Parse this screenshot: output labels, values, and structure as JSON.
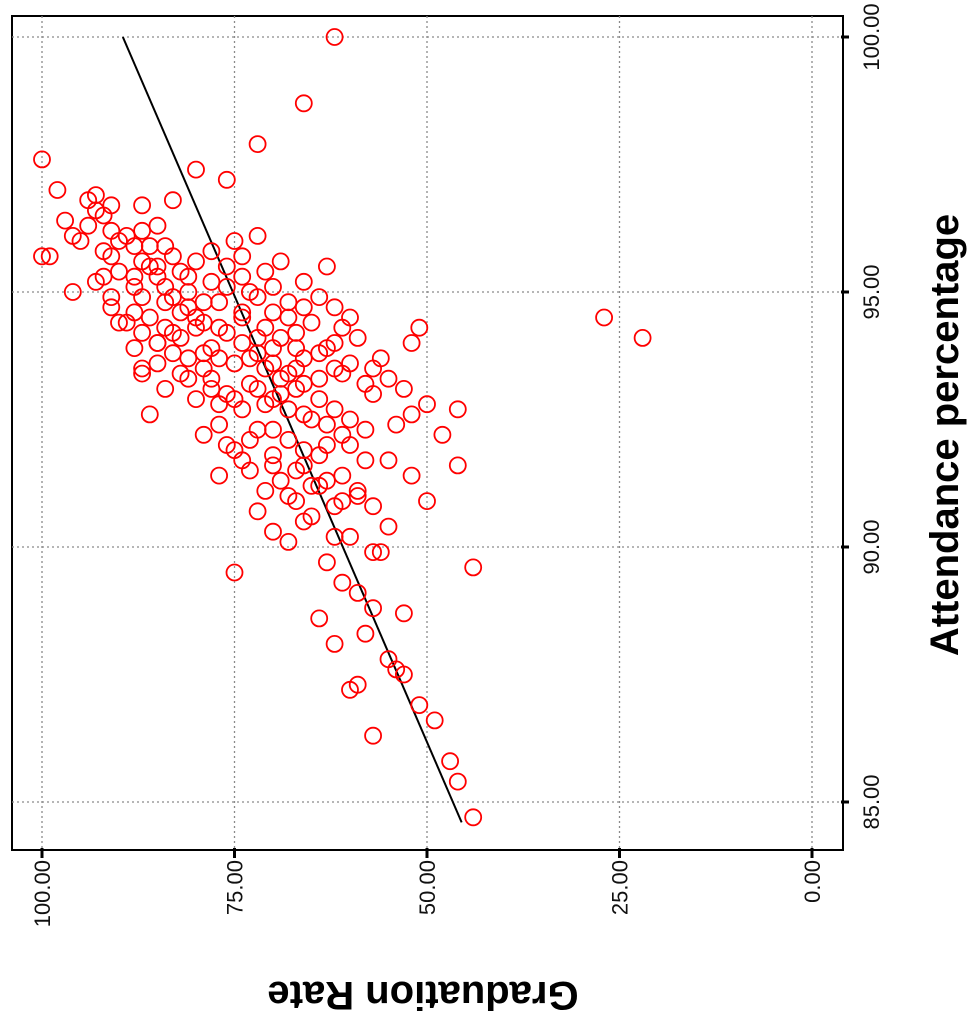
{
  "chart_data": {
    "type": "scatter",
    "title": "",
    "xlabel": "Attendance percentage",
    "ylabel": "Graduation Rate",
    "x_ticks": [
      "85.00",
      "90.00",
      "95.00",
      "100.00"
    ],
    "y_ticks": [
      "0.00",
      "25.00",
      "50.00",
      "75.00",
      "100.00"
    ],
    "xlim": [
      84.2,
      100.6
    ],
    "ylim": [
      -1.5,
      103
    ],
    "grid": true,
    "legend": "none",
    "orientation": "rotated-90-clockwise",
    "point_color": "#ff0000",
    "line_color": "#000000",
    "fit_line": {
      "x": [
        84.6,
        100.0
      ],
      "y": [
        45.5,
        89.5
      ]
    },
    "points": [
      [
        100.0,
        62
      ],
      [
        98.7,
        66
      ],
      [
        97.9,
        72
      ],
      [
        97.6,
        100
      ],
      [
        97.4,
        80
      ],
      [
        97.2,
        76
      ],
      [
        97.0,
        98
      ],
      [
        96.9,
        93
      ],
      [
        96.8,
        94
      ],
      [
        96.8,
        83
      ],
      [
        96.7,
        91
      ],
      [
        96.6,
        93
      ],
      [
        96.4,
        97
      ],
      [
        96.3,
        94
      ],
      [
        96.2,
        91
      ],
      [
        96.1,
        89
      ],
      [
        96.1,
        96
      ],
      [
        96.0,
        95
      ],
      [
        95.9,
        84
      ],
      [
        95.9,
        88
      ],
      [
        95.8,
        92
      ],
      [
        95.7,
        100
      ],
      [
        95.7,
        99
      ],
      [
        95.6,
        87
      ],
      [
        95.5,
        86
      ],
      [
        95.5,
        63
      ],
      [
        95.4,
        90
      ],
      [
        95.3,
        81
      ],
      [
        95.3,
        85
      ],
      [
        95.2,
        93
      ],
      [
        95.1,
        88
      ],
      [
        95.1,
        76
      ],
      [
        95.0,
        96
      ],
      [
        94.9,
        87
      ],
      [
        94.8,
        84
      ],
      [
        94.8,
        79
      ],
      [
        94.7,
        91
      ],
      [
        94.6,
        82
      ],
      [
        94.5,
        86
      ],
      [
        94.5,
        74
      ],
      [
        94.4,
        89
      ],
      [
        94.3,
        80
      ],
      [
        94.3,
        77
      ],
      [
        94.2,
        83
      ],
      [
        94.1,
        72
      ],
      [
        94.0,
        85
      ],
      [
        93.9,
        88
      ],
      [
        93.9,
        70
      ],
      [
        93.8,
        79
      ],
      [
        93.7,
        81
      ],
      [
        93.6,
        75
      ],
      [
        93.5,
        87
      ],
      [
        93.5,
        67
      ],
      [
        93.4,
        82
      ],
      [
        93.3,
        78
      ],
      [
        93.2,
        73
      ],
      [
        93.1,
        84
      ],
      [
        93.0,
        76
      ],
      [
        93.0,
        69
      ],
      [
        92.9,
        80
      ],
      [
        92.8,
        71
      ],
      [
        92.7,
        74
      ],
      [
        92.6,
        86
      ],
      [
        92.5,
        65
      ],
      [
        92.4,
        77
      ],
      [
        92.3,
        72
      ],
      [
        92.2,
        79
      ],
      [
        92.1,
        68
      ],
      [
        92.0,
        63
      ],
      [
        91.9,
        75
      ],
      [
        91.8,
        70
      ],
      [
        91.7,
        58
      ],
      [
        91.6,
        66
      ],
      [
        91.5,
        73
      ],
      [
        91.4,
        61
      ],
      [
        91.3,
        69
      ],
      [
        91.2,
        64
      ],
      [
        91.1,
        71
      ],
      [
        91.0,
        59
      ],
      [
        90.9,
        67
      ],
      [
        90.8,
        62
      ],
      [
        90.6,
        65
      ],
      [
        90.4,
        55
      ],
      [
        90.3,
        70
      ],
      [
        90.2,
        60
      ],
      [
        90.1,
        68
      ],
      [
        89.9,
        56
      ],
      [
        89.7,
        63
      ],
      [
        89.5,
        75
      ],
      [
        89.3,
        61
      ],
      [
        89.1,
        59
      ],
      [
        88.8,
        57
      ],
      [
        88.6,
        64
      ],
      [
        88.3,
        58
      ],
      [
        88.1,
        62
      ],
      [
        87.8,
        55
      ],
      [
        87.5,
        53
      ],
      [
        87.2,
        60
      ],
      [
        86.9,
        51
      ],
      [
        86.6,
        49
      ],
      [
        86.3,
        57
      ],
      [
        85.8,
        47
      ],
      [
        85.4,
        46
      ],
      [
        84.7,
        44
      ],
      [
        94.5,
        27
      ],
      [
        94.1,
        22
      ],
      [
        92.7,
        46
      ],
      [
        92.2,
        48
      ],
      [
        91.7,
        55
      ],
      [
        91.4,
        52
      ],
      [
        90.9,
        50
      ],
      [
        89.9,
        57
      ],
      [
        89.6,
        44
      ],
      [
        88.7,
        53
      ],
      [
        87.3,
        59
      ],
      [
        87.6,
        54
      ],
      [
        93.7,
        56
      ],
      [
        94.3,
        51
      ],
      [
        93.1,
        53
      ],
      [
        92.4,
        54
      ],
      [
        95.6,
        69
      ],
      [
        95.4,
        71
      ],
      [
        95.2,
        66
      ],
      [
        95.0,
        73
      ],
      [
        94.8,
        68
      ],
      [
        94.6,
        70
      ],
      [
        94.4,
        65
      ],
      [
        94.2,
        67
      ],
      [
        94.0,
        62
      ],
      [
        93.8,
        64
      ],
      [
        93.6,
        60
      ],
      [
        93.4,
        61
      ],
      [
        93.2,
        58
      ],
      [
        93.0,
        57
      ],
      [
        96.1,
        72
      ],
      [
        96.0,
        75
      ],
      [
        95.8,
        78
      ],
      [
        95.6,
        80
      ],
      [
        95.4,
        82
      ],
      [
        95.2,
        78
      ],
      [
        95.0,
        81
      ],
      [
        94.8,
        77
      ],
      [
        94.6,
        74
      ],
      [
        94.4,
        79
      ],
      [
        94.2,
        76
      ],
      [
        94.0,
        74
      ],
      [
        93.8,
        72
      ],
      [
        93.6,
        70
      ],
      [
        93.4,
        68
      ],
      [
        93.2,
        66
      ],
      [
        92.9,
        64
      ],
      [
        92.7,
        62
      ],
      [
        92.5,
        60
      ],
      [
        92.3,
        58
      ],
      [
        94.9,
        64
      ],
      [
        94.7,
        62
      ],
      [
        94.5,
        60
      ],
      [
        94.3,
        61
      ],
      [
        94.1,
        59
      ],
      [
        93.9,
        63
      ],
      [
        93.7,
        66
      ],
      [
        93.5,
        62
      ],
      [
        93.3,
        64
      ],
      [
        93.1,
        67
      ],
      [
        95.7,
        74
      ],
      [
        95.5,
        76
      ],
      [
        95.3,
        74
      ],
      [
        95.1,
        70
      ],
      [
        94.9,
        72
      ],
      [
        94.7,
        66
      ],
      [
        94.5,
        68
      ],
      [
        94.3,
        71
      ],
      [
        94.1,
        69
      ],
      [
        93.9,
        67
      ],
      [
        93.7,
        73
      ],
      [
        93.5,
        71
      ],
      [
        93.3,
        69
      ],
      [
        93.1,
        72
      ],
      [
        92.9,
        70
      ],
      [
        92.7,
        68
      ],
      [
        92.6,
        66
      ],
      [
        92.4,
        63
      ],
      [
        92.2,
        61
      ],
      [
        92.0,
        60
      ],
      [
        96.3,
        85
      ],
      [
        96.2,
        87
      ],
      [
        96.0,
        90
      ],
      [
        95.9,
        86
      ],
      [
        95.7,
        83
      ],
      [
        95.5,
        85
      ],
      [
        95.3,
        88
      ],
      [
        95.1,
        84
      ],
      [
        94.9,
        83
      ],
      [
        94.7,
        81
      ],
      [
        94.5,
        80
      ],
      [
        94.3,
        84
      ],
      [
        94.1,
        82
      ],
      [
        93.9,
        78
      ],
      [
        93.7,
        77
      ],
      [
        93.5,
        79
      ],
      [
        93.3,
        81
      ],
      [
        93.1,
        78
      ],
      [
        92.9,
        75
      ],
      [
        92.8,
        77
      ],
      [
        91.9,
        66
      ],
      [
        91.8,
        64
      ],
      [
        91.6,
        70
      ],
      [
        91.5,
        67
      ],
      [
        91.3,
        63
      ],
      [
        91.2,
        65
      ],
      [
        91.0,
        68
      ],
      [
        90.9,
        61
      ],
      [
        92.1,
        73
      ],
      [
        92.0,
        76
      ],
      [
        91.7,
        74
      ],
      [
        91.4,
        77
      ],
      [
        90.7,
        72
      ],
      [
        90.5,
        66
      ],
      [
        90.2,
        62
      ],
      [
        91.1,
        59
      ],
      [
        90.8,
        57
      ],
      [
        92.3,
        70
      ],
      [
        94.6,
        88
      ],
      [
        94.4,
        90
      ],
      [
        94.2,
        87
      ],
      [
        94.0,
        85
      ],
      [
        93.8,
        83
      ],
      [
        93.6,
        85
      ],
      [
        93.4,
        87
      ],
      [
        94.9,
        91
      ],
      [
        95.3,
        92
      ],
      [
        95.7,
        91
      ],
      [
        96.5,
        92
      ],
      [
        96.7,
        87
      ],
      [
        92.6,
        52
      ],
      [
        93.3,
        55
      ],
      [
        94.0,
        52
      ],
      [
        92.8,
        50
      ],
      [
        93.5,
        57
      ],
      [
        91.6,
        46
      ]
    ]
  }
}
